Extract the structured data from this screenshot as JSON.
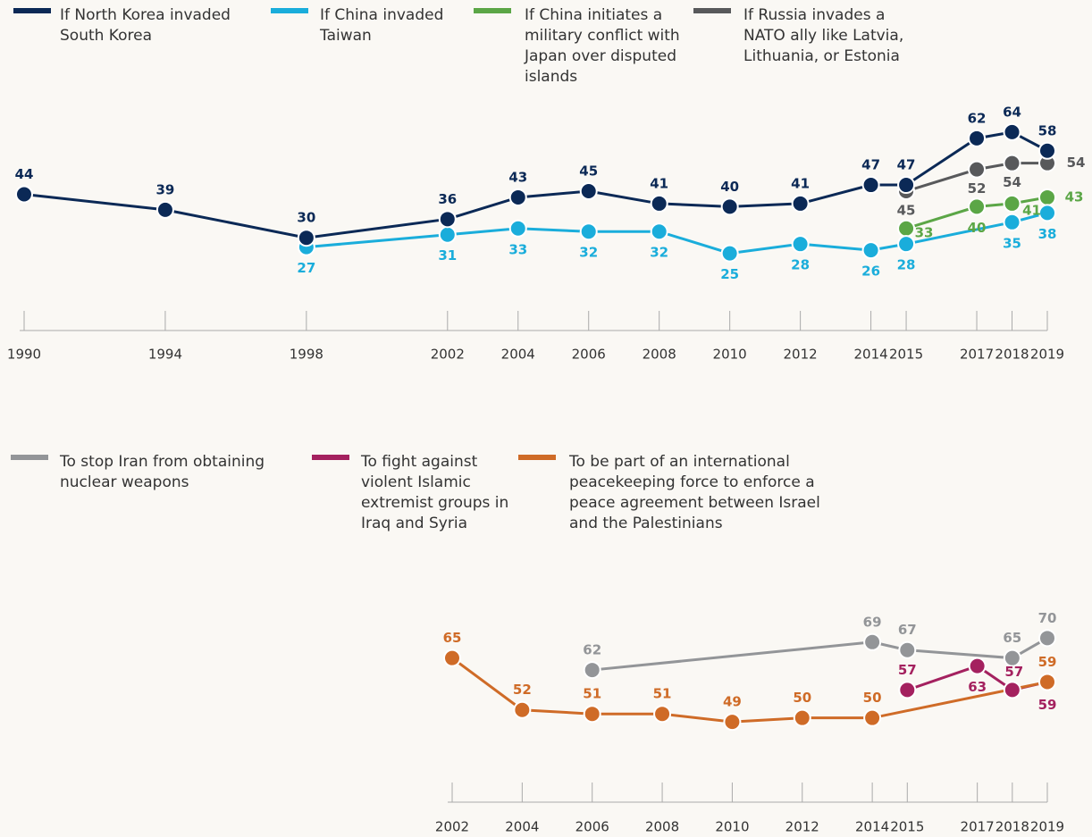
{
  "chart_data": [
    {
      "type": "line",
      "xlim": [
        1990,
        2019
      ],
      "xticks": [
        1990,
        1994,
        1998,
        2002,
        2004,
        2006,
        2008,
        2010,
        2012,
        2014,
        2015,
        2017,
        2018,
        2019
      ],
      "ylim": [
        20,
        70
      ],
      "series": [
        {
          "name": "If North Korea invaded South Korea",
          "color": "#0b2956",
          "x": [
            1990,
            1994,
            1998,
            2002,
            2004,
            2006,
            2008,
            2010,
            2012,
            2014,
            2015,
            2017,
            2018,
            2019
          ],
          "values": [
            44,
            39,
            30,
            36,
            43,
            45,
            41,
            40,
            41,
            47,
            47,
            62,
            64,
            58
          ]
        },
        {
          "name": "If China invaded Taiwan",
          "color": "#1aaddb",
          "x": [
            1998,
            2002,
            2004,
            2006,
            2008,
            2010,
            2012,
            2014,
            2015,
            2018,
            2019
          ],
          "values": [
            27,
            31,
            33,
            32,
            32,
            25,
            28,
            26,
            28,
            35,
            38
          ]
        },
        {
          "name": "If China initiates a military conflict with Japan over disputed islands",
          "color": "#5ba646",
          "x": [
            2015,
            2017,
            2018,
            2019
          ],
          "values": [
            33,
            40,
            41,
            43
          ]
        },
        {
          "name": "If Russia invades a NATO ally like Latvia, Lithuania, or Estonia",
          "color": "#58595b",
          "x": [
            2015,
            2017,
            2018,
            2019
          ],
          "values": [
            45,
            52,
            54,
            54
          ]
        }
      ]
    },
    {
      "type": "line",
      "xlim": [
        2002,
        2019
      ],
      "xticks": [
        2002,
        2004,
        2006,
        2008,
        2010,
        2012,
        2014,
        2015,
        2017,
        2018,
        2019
      ],
      "ylim": [
        45,
        75
      ],
      "series": [
        {
          "name": "To stop Iran from obtaining nuclear weapons",
          "color": "#939598",
          "x": [
            2006,
            2014,
            2015,
            2018,
            2019
          ],
          "values": [
            62,
            69,
            67,
            65,
            70
          ]
        },
        {
          "name": "To fight against violent Islamic extremist groups in Iraq and Syria",
          "color": "#a4215f",
          "x": [
            2015,
            2017,
            2018,
            2019
          ],
          "values": [
            57,
            63,
            57,
            59
          ]
        },
        {
          "name": "To be part of an international peacekeeping force to enforce a peace agreement between Israel and the Palestinians",
          "color": "#cf6b27",
          "x": [
            2002,
            2004,
            2006,
            2008,
            2010,
            2012,
            2014,
            2019
          ],
          "values": [
            65,
            52,
            51,
            51,
            49,
            50,
            50,
            59
          ]
        }
      ]
    }
  ]
}
